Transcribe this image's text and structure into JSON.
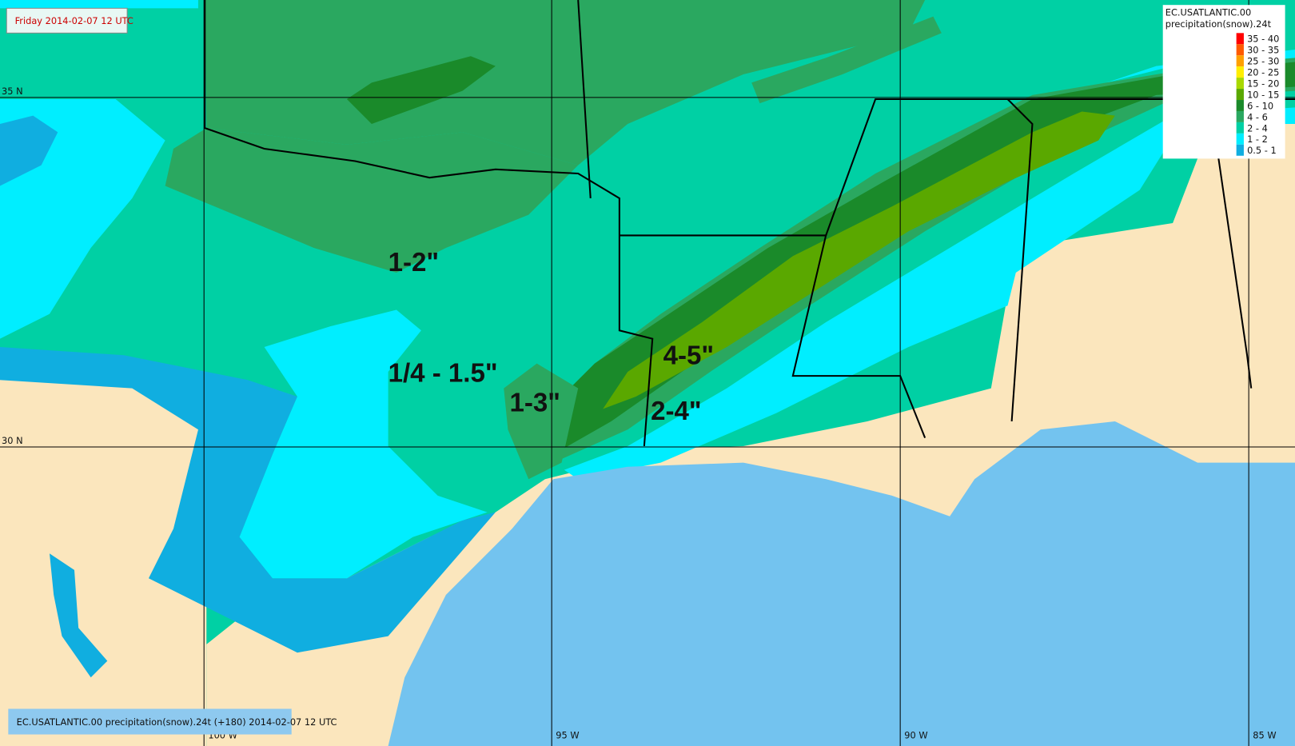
{
  "header": {
    "label": "Friday 2014-02-07 12 UTC"
  },
  "legend": {
    "title": "EC.USATLANTIC.00",
    "subtitle": "precipitation(snow).24t",
    "items": [
      {
        "label": "35 - 40",
        "color": "#ff0000"
      },
      {
        "label": "30 - 35",
        "color": "#ff5a00"
      },
      {
        "label": "25 - 30",
        "color": "#ffa000"
      },
      {
        "label": "20 - 25",
        "color": "#ffee00"
      },
      {
        "label": "15 - 20",
        "color": "#a8d800"
      },
      {
        "label": "10 - 15",
        "color": "#5aa800"
      },
      {
        "label": "6 - 10",
        "color": "#1a8a2a"
      },
      {
        "label": "4 - 6",
        "color": "#2aa860"
      },
      {
        "label": "2 - 4",
        "color": "#00d0a4"
      },
      {
        "label": "1 - 2",
        "color": "#00eeff"
      },
      {
        "label": "0.5 - 1",
        "color": "#10aee0"
      }
    ]
  },
  "annotations": [
    "1-2\"",
    "1/4 - 1.5\"",
    "1-3\"",
    "4-5\"",
    "2-4\""
  ],
  "grid_labels": {
    "lat": [
      "35 N",
      "30 N"
    ],
    "lon": [
      "100 W",
      "95 W",
      "90 W",
      "85 W"
    ]
  },
  "footer": "EC.USATLANTIC.00 precipitation(snow).24t (+180) 2014-02-07 12 UTC"
}
